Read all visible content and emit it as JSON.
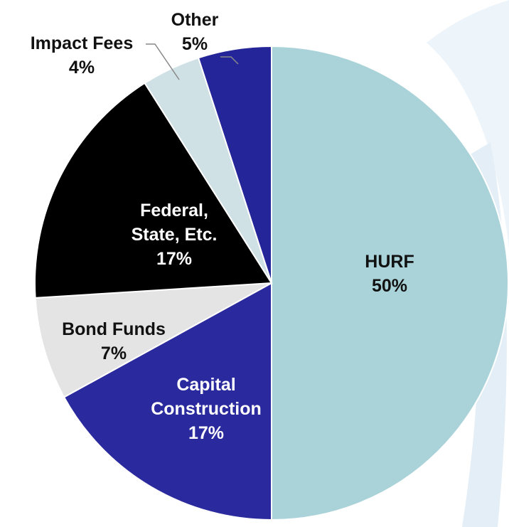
{
  "chart_data": {
    "type": "pie",
    "categories": [
      "HURF",
      "Capital Construction",
      "Bond Funds",
      "Federal, State, Etc.",
      "Impact Fees",
      "Other"
    ],
    "values": [
      50,
      17,
      7,
      17,
      4,
      5
    ],
    "value_labels": [
      "50%",
      "17%",
      "7%",
      "17%",
      "4%",
      "5%"
    ],
    "colors": [
      "#a9d3d9",
      "#2a2a9e",
      "#e4e4e4",
      "#000000",
      "#cfe1e4",
      "#25259a"
    ]
  }
}
